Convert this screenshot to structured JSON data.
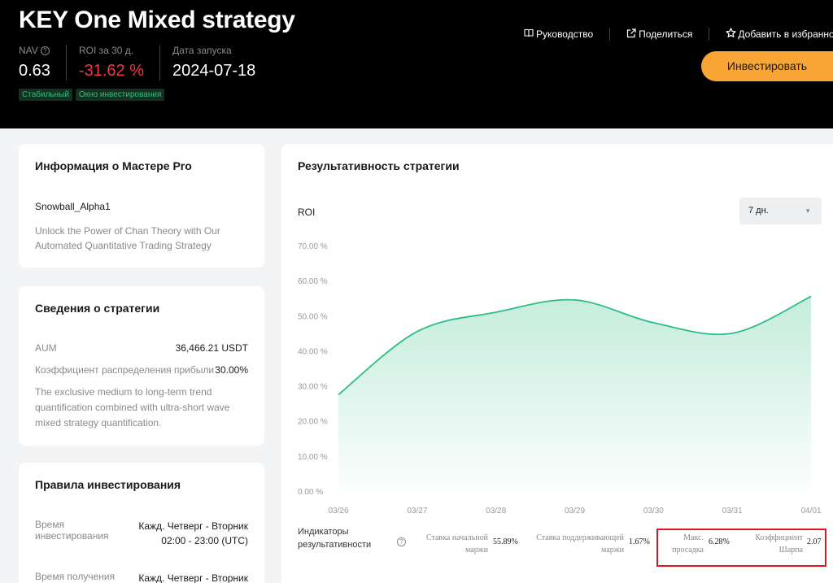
{
  "header": {
    "title": "KEY One Mixed strategy",
    "stats": [
      {
        "label": "NAV",
        "value": "0.63",
        "has_help": true
      },
      {
        "label": "ROI за 30 д.",
        "value": "-31.62 %",
        "negative": true
      },
      {
        "label": "Дата запуска",
        "value": "2024-07-18"
      }
    ],
    "tags": [
      "Стабильный",
      "Окно инвестирования"
    ],
    "actions": {
      "guide": "Руководство",
      "share": "Поделиться",
      "favorite": "Добавить в избранно"
    },
    "invest_button": "Инвестировать"
  },
  "master": {
    "title": "Информация о Мастере Pro",
    "name": "Snowball_Alpha1",
    "description": "Unlock the Power of Chan Theory with Our Automated Quantitative Trading Strategy"
  },
  "strategy": {
    "title": "Сведения о стратегии",
    "aum_label": "AUM",
    "aum_value": "36,466.21 USDT",
    "profit_label": "Коэффициент распределения прибыли",
    "profit_value": "30.00%",
    "description": "The exclusive medium to long-term trend quantification combined with ultra-short wave mixed strategy quantification."
  },
  "rules": {
    "title": "Правила инвестирования",
    "invest_time_label": "Время инвестирования",
    "invest_time_value": "Кажд. Четверг - Вторник 02:00 - 23:00 (UTC)",
    "receive_time_label": "Время получения",
    "receive_time_value": "Кажд. Четверг - Вторник"
  },
  "performance": {
    "title": "Результативность стратегии",
    "roi_label": "ROI",
    "period": "7 дн.",
    "indicators_label": "Индикаторы результативности",
    "metrics": [
      {
        "label": "Ставка начальной маржи",
        "value": "55.89%"
      },
      {
        "label": "Ставка поддерживающей маржи",
        "value": "1.67%"
      },
      {
        "label": "Макс. просадка",
        "value": "6.28%"
      },
      {
        "label": "Коэффициент Шарпа",
        "value": "2.07"
      }
    ]
  },
  "colors": {
    "accent": "#f7a535",
    "negative": "#f23645",
    "line": "#2ebd85",
    "highlight": "#e0151d"
  },
  "chart_data": {
    "type": "area",
    "x": [
      "03/26",
      "03/27",
      "03/28",
      "03/29",
      "03/30",
      "03/31",
      "04/01"
    ],
    "y": [
      27.5,
      45.5,
      51.0,
      54.5,
      48.0,
      45.0,
      55.5
    ],
    "ylim": [
      0,
      70
    ],
    "yticks": [
      0,
      10,
      20,
      30,
      40,
      50,
      60,
      70
    ],
    "ytick_labels": [
      "0.00 %",
      "10.00 %",
      "20.00 %",
      "30.00 %",
      "40.00 %",
      "50.00 %",
      "60.00 %",
      "70.00 %"
    ],
    "xlabel": "",
    "ylabel": "ROI",
    "grid": false
  }
}
